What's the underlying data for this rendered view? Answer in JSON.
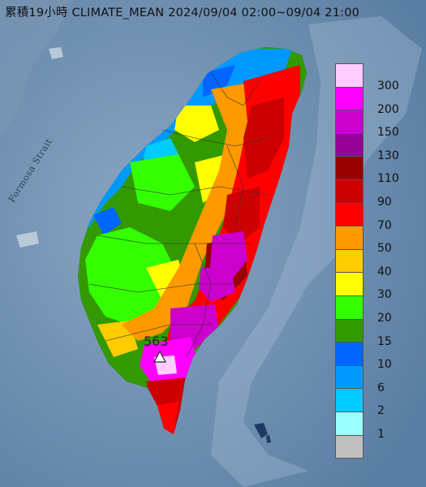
{
  "title": "累積19小時 CLIMATE_MEAN 2024/09/04 02:00~09/04 21:00",
  "strait_label": "Formosa Strait",
  "peak": {
    "label": "563",
    "marker_icon": "triangle-marker-icon"
  },
  "legend": [
    {
      "label": "300",
      "color": "#ffccff"
    },
    {
      "label": "200",
      "color": "#ff00ff"
    },
    {
      "label": "150",
      "color": "#cc00cc"
    },
    {
      "label": "130",
      "color": "#990099"
    },
    {
      "label": "110",
      "color": "#990000"
    },
    {
      "label": "90",
      "color": "#cc0000"
    },
    {
      "label": "70",
      "color": "#ff0000"
    },
    {
      "label": "50",
      "color": "#ff9900"
    },
    {
      "label": "40",
      "color": "#ffcc00"
    },
    {
      "label": "30",
      "color": "#ffff00"
    },
    {
      "label": "20",
      "color": "#33ff00"
    },
    {
      "label": "15",
      "color": "#339900"
    },
    {
      "label": "10",
      "color": "#0066ff"
    },
    {
      "label": "6",
      "color": "#0099ff"
    },
    {
      "label": "2",
      "color": "#00ccff"
    },
    {
      "label": "1",
      "color": "#99ffff"
    },
    {
      "label": "",
      "color": "#c0c0c0"
    }
  ]
}
